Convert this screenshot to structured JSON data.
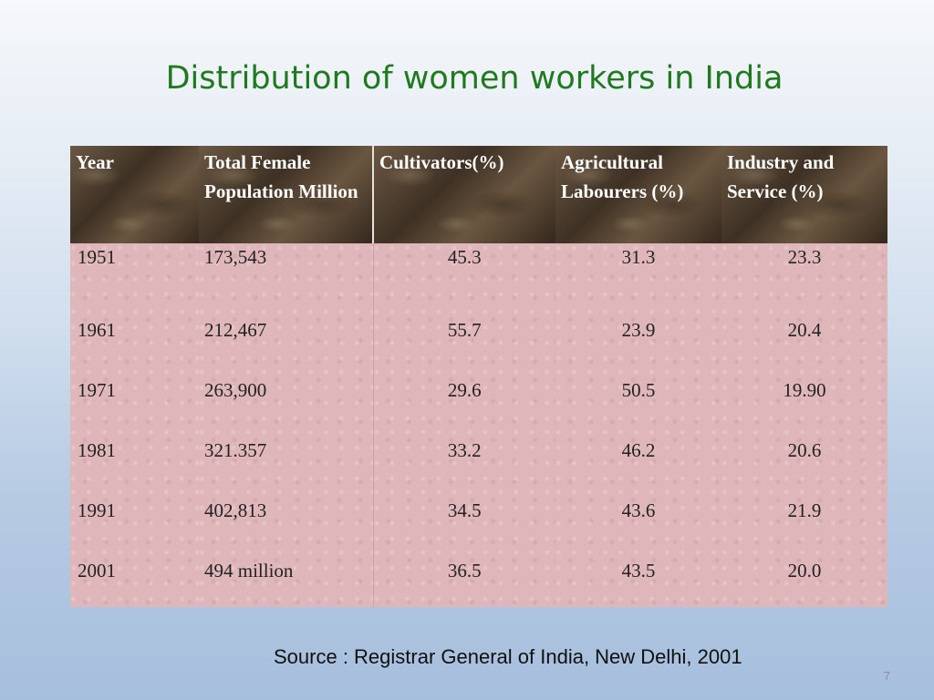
{
  "slide": {
    "title": "Distribution of women workers in India",
    "source": "Source : Registrar General of India, New Delhi, 2001",
    "page_number": "7"
  },
  "table": {
    "headers": [
      "Year",
      "Total Female Population Million",
      "Cultivators(%)",
      "Agricultural Labourers (%)",
      "Industry and Service (%)"
    ],
    "rows": [
      [
        "1951",
        "173,543",
        "45.3",
        "31.3",
        "23.3"
      ],
      [
        "1961",
        "212,467",
        "55.7",
        "23.9",
        "20.4"
      ],
      [
        "1971",
        "263,900",
        "29.6",
        "50.5",
        "19.90"
      ],
      [
        "1981",
        "321.357",
        "33.2",
        "46.2",
        "20.6"
      ],
      [
        "1991",
        "402,813",
        "34.5",
        "43.6",
        "21.9"
      ],
      [
        "2001",
        "494 million",
        "36.5",
        "43.5",
        "20.0"
      ]
    ]
  }
}
